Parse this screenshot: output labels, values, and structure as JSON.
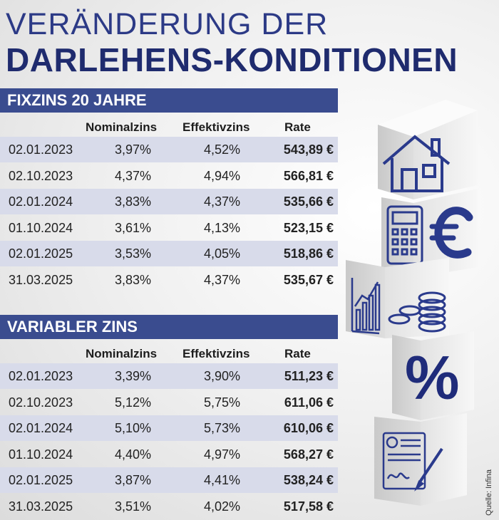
{
  "title_line1": "VERÄNDERUNG DER",
  "title_line2": "DARLEHENS-KONDITIONEN",
  "source": "Quelle: Infina",
  "colors": {
    "accent": "#3a4c8f",
    "title_dark": "#1f2b6e",
    "row_shade": "#d8dbea",
    "icon_blue": "#2a3a8c"
  },
  "icons": [
    "house-icon",
    "calculator-icon",
    "euro-icon",
    "rising-chart-icon",
    "coin-stack-icon",
    "percent-icon",
    "contract-signature-icon"
  ],
  "chart_data": [
    {
      "type": "table",
      "title": "FIXZINS 20 JAHRE",
      "columns": [
        "",
        "Nominalzins",
        "Effektivzins",
        "Rate"
      ],
      "rows": [
        [
          "02.01.2023",
          "3,97%",
          "4,52%",
          "543,89 €"
        ],
        [
          "02.10.2023",
          "4,37%",
          "4,94%",
          "566,81 €"
        ],
        [
          "02.01.2024",
          "3,83%",
          "4,37%",
          "535,66 €"
        ],
        [
          "01.10.2024",
          "3,61%",
          "4,13%",
          "523,15 €"
        ],
        [
          "02.01.2025",
          "3,53%",
          "4,05%",
          "518,86 €"
        ],
        [
          "31.03.2025",
          "3,83%",
          "4,37%",
          "535,67 €"
        ]
      ]
    },
    {
      "type": "table",
      "title": "VARIABLER ZINS",
      "columns": [
        "",
        "Nominalzins",
        "Effektivzins",
        "Rate"
      ],
      "rows": [
        [
          "02.01.2023",
          "3,39%",
          "3,90%",
          "511,23 €"
        ],
        [
          "02.10.2023",
          "5,12%",
          "5,75%",
          "611,06 €"
        ],
        [
          "02.01.2024",
          "5,10%",
          "5,73%",
          "610,06 €"
        ],
        [
          "01.10.2024",
          "4,40%",
          "4,97%",
          "568,27 €"
        ],
        [
          "02.01.2025",
          "3,87%",
          "4,41%",
          "538,24 €"
        ],
        [
          "31.03.2025",
          "3,51%",
          "4,02%",
          "517,58 €"
        ]
      ]
    }
  ]
}
